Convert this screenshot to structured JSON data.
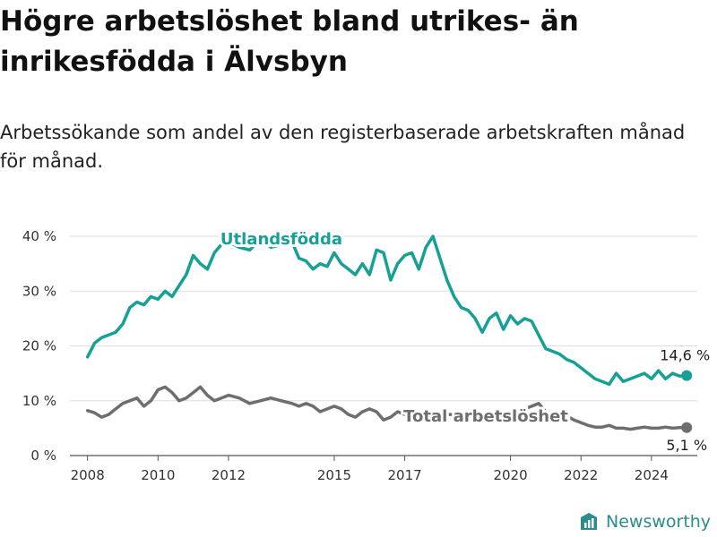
{
  "title": "Högre arbetslöshet bland utrikes- än inrikesfödda i Älvsbyn",
  "subtitle": "Arbetssökande som andel av den registerbaserade arbetskraften månad för månad.",
  "brand": "Newsworthy",
  "colors": {
    "foreign": "#16a096",
    "total": "#6e6e6e",
    "grid": "#dddddd"
  },
  "chart_data": {
    "type": "line",
    "title": "Högre arbetslöshet bland utrikes- än inrikesfödda i Älvsbyn",
    "subtitle": "Arbetssökande som andel av den registerbaserade arbetskraften månad för månad.",
    "xlabel": "",
    "ylabel": "",
    "ylim": [
      0,
      40
    ],
    "xlim": [
      2007.5,
      2025.3
    ],
    "y_ticks": [
      0,
      10,
      20,
      30,
      40
    ],
    "y_tick_labels": [
      "0 %",
      "10 %",
      "20 %",
      "30 %",
      "40 %"
    ],
    "x_ticks": [
      2008,
      2010,
      2012,
      2015,
      2017,
      2020,
      2022,
      2024
    ],
    "x_tick_labels": [
      "2008",
      "2010",
      "2012",
      "2015",
      "2017",
      "2020",
      "2022",
      "2024"
    ],
    "grid": true,
    "legend": "inline labels",
    "series": [
      {
        "name": "Utlandsfödda",
        "end_label": "14,6 %",
        "x": [
          2008.0,
          2008.2,
          2008.4,
          2008.6,
          2008.8,
          2009.0,
          2009.2,
          2009.4,
          2009.6,
          2009.8,
          2010.0,
          2010.2,
          2010.4,
          2010.6,
          2010.8,
          2011.0,
          2011.2,
          2011.4,
          2011.6,
          2011.8,
          2012.0,
          2012.3,
          2012.6,
          2012.9,
          2013.2,
          2013.5,
          2013.8,
          2014.0,
          2014.2,
          2014.4,
          2014.6,
          2014.8,
          2015.0,
          2015.2,
          2015.4,
          2015.6,
          2015.8,
          2016.0,
          2016.2,
          2016.4,
          2016.6,
          2016.8,
          2017.0,
          2017.2,
          2017.4,
          2017.6,
          2017.8,
          2018.0,
          2018.2,
          2018.4,
          2018.6,
          2018.8,
          2019.0,
          2019.2,
          2019.4,
          2019.6,
          2019.8,
          2020.0,
          2020.2,
          2020.4,
          2020.6,
          2020.8,
          2021.0,
          2021.2,
          2021.4,
          2021.6,
          2021.8,
          2022.0,
          2022.2,
          2022.4,
          2022.6,
          2022.8,
          2023.0,
          2023.2,
          2023.4,
          2023.6,
          2023.8,
          2024.0,
          2024.2,
          2024.4,
          2024.6,
          2024.8,
          2025.0
        ],
        "values": [
          18.0,
          20.5,
          21.5,
          22.0,
          22.5,
          24.0,
          27.0,
          28.0,
          27.5,
          29.0,
          28.5,
          30.0,
          29.0,
          31.0,
          33.0,
          36.5,
          35.0,
          34.0,
          37.0,
          38.5,
          39.0,
          38.0,
          37.5,
          39.5,
          38.0,
          38.5,
          39.0,
          36.0,
          35.5,
          34.0,
          35.0,
          34.5,
          37.0,
          35.0,
          34.0,
          33.0,
          35.0,
          33.0,
          37.5,
          37.0,
          32.0,
          35.0,
          36.5,
          37.0,
          34.0,
          38.0,
          40.0,
          36.0,
          32.0,
          29.0,
          27.0,
          26.5,
          25.0,
          22.5,
          25.0,
          26.0,
          23.0,
          25.5,
          24.0,
          25.0,
          24.5,
          22.0,
          19.5,
          19.0,
          18.5,
          17.5,
          17.0,
          16.0,
          15.0,
          14.0,
          13.5,
          13.0,
          15.0,
          13.5,
          14.0,
          14.5,
          15.0,
          14.0,
          15.5,
          14.0,
          15.0,
          14.5,
          14.6
        ]
      },
      {
        "name": "Total arbetslöshet",
        "end_label": "5,1 %",
        "x": [
          2008.0,
          2008.2,
          2008.4,
          2008.6,
          2008.8,
          2009.0,
          2009.2,
          2009.4,
          2009.6,
          2009.8,
          2010.0,
          2010.2,
          2010.4,
          2010.6,
          2010.8,
          2011.0,
          2011.2,
          2011.4,
          2011.6,
          2011.8,
          2012.0,
          2012.3,
          2012.6,
          2012.9,
          2013.2,
          2013.5,
          2013.8,
          2014.0,
          2014.2,
          2014.4,
          2014.6,
          2014.8,
          2015.0,
          2015.2,
          2015.4,
          2015.6,
          2015.8,
          2016.0,
          2016.2,
          2016.4,
          2016.6,
          2016.8,
          2017.0,
          2017.2,
          2017.4,
          2017.6,
          2017.8,
          2018.0,
          2018.2,
          2018.4,
          2018.6,
          2018.8,
          2019.0,
          2019.2,
          2019.4,
          2019.6,
          2019.8,
          2020.0,
          2020.2,
          2020.4,
          2020.6,
          2020.8,
          2021.0,
          2021.2,
          2021.4,
          2021.6,
          2021.8,
          2022.0,
          2022.2,
          2022.4,
          2022.6,
          2022.8,
          2023.0,
          2023.2,
          2023.4,
          2023.6,
          2023.8,
          2024.0,
          2024.2,
          2024.4,
          2024.6,
          2024.8,
          2025.0
        ],
        "values": [
          8.2,
          7.8,
          7.0,
          7.5,
          8.5,
          9.5,
          10.0,
          10.5,
          9.0,
          10.0,
          12.0,
          12.5,
          11.5,
          10.0,
          10.5,
          11.5,
          12.5,
          11.0,
          10.0,
          10.5,
          11.0,
          10.5,
          9.5,
          10.0,
          10.5,
          10.0,
          9.5,
          9.0,
          9.5,
          9.0,
          8.0,
          8.5,
          9.0,
          8.5,
          7.5,
          7.0,
          8.0,
          8.5,
          8.0,
          6.5,
          7.0,
          8.0,
          7.5,
          7.5,
          7.5,
          7.5,
          7.5,
          7.5,
          7.5,
          7.5,
          7.5,
          7.5,
          7.5,
          7.5,
          7.5,
          7.5,
          7.5,
          8.0,
          8.0,
          8.5,
          9.0,
          9.5,
          8.0,
          7.5,
          7.0,
          7.2,
          6.5,
          6.0,
          5.5,
          5.2,
          5.2,
          5.5,
          5.0,
          5.0,
          4.8,
          5.0,
          5.2,
          5.0,
          5.0,
          5.2,
          5.0,
          5.1,
          5.1
        ]
      }
    ]
  }
}
